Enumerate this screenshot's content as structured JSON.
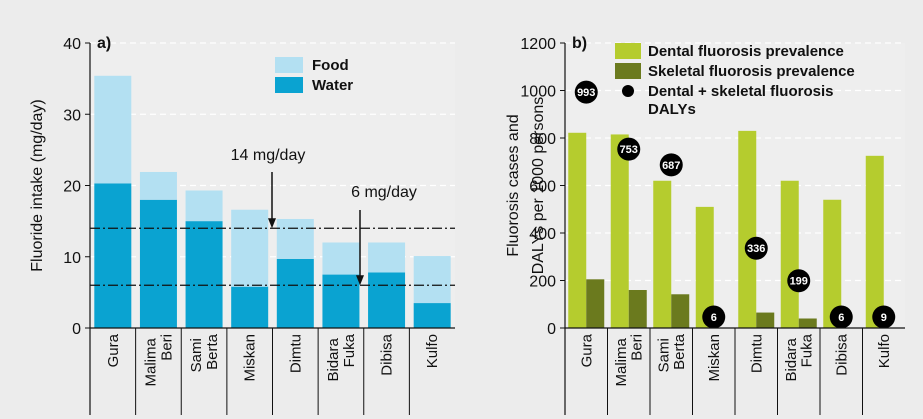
{
  "chart_data": [
    {
      "type": "bar",
      "stacked": true,
      "panel_label": "a)",
      "y_label": [
        "Fluoride intake (mg/day)"
      ],
      "categories": [
        "Gura",
        "Malima Beri",
        "Sami Berta",
        "Miskan",
        "Dimtu",
        "Bidara Fuka",
        "Dibisa",
        "Kulfo"
      ],
      "series": [
        {
          "name": "Food",
          "color": "#b3e0f2",
          "values": [
            15.1,
            3.9,
            4.3,
            10.8,
            5.6,
            4.5,
            4.2,
            6.6
          ]
        },
        {
          "name": "Water",
          "color": "#0aa3d1",
          "values": [
            20.3,
            18,
            15,
            5.8,
            9.7,
            7.5,
            7.8,
            3.5
          ]
        }
      ],
      "reference_lines": [
        {
          "value": 14,
          "label": "14 mg/day"
        },
        {
          "value": 6,
          "label": "6 mg/day"
        }
      ],
      "ylim": [
        0,
        40
      ],
      "yticks": [
        0,
        10,
        20,
        30,
        40
      ],
      "grid": true
    },
    {
      "type": "bar",
      "stacked": false,
      "panel_label": "b)",
      "y_label": [
        "Fluorosis cases and",
        "DALYs per 1000 persons"
      ],
      "categories": [
        "Gura",
        "Malima Beri",
        "Sami Berta",
        "Miskan",
        "Dimtu",
        "Bidara Fuka",
        "Dibisa",
        "Kulfo"
      ],
      "series": [
        {
          "name": "Dental fluorosis prevalence",
          "color": "#b5cc2e",
          "values": [
            822,
            815,
            620,
            510,
            830,
            620,
            540,
            725
          ]
        },
        {
          "name": "Skeletal fluorosis prevalence",
          "color": "#6b7a1e",
          "values": [
            205,
            160,
            142,
            0,
            65,
            40,
            0,
            0
          ]
        },
        {
          "name": "Dental + skeletal fluorosis DALYs",
          "color": "#000000",
          "type": "scatter",
          "values": [
            993,
            753,
            687,
            6,
            336,
            199,
            6,
            9
          ]
        }
      ],
      "ylim": [
        0,
        1200
      ],
      "yticks": [
        0,
        200,
        400,
        600,
        800,
        1000,
        1200
      ],
      "grid": true
    }
  ]
}
